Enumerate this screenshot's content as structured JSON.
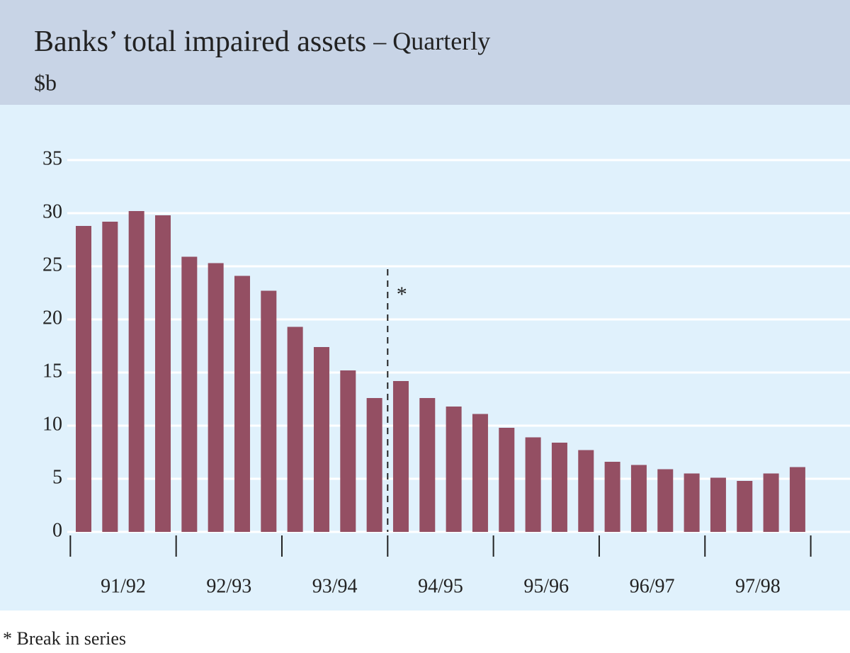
{
  "chart_data": {
    "type": "bar",
    "title": "Banks’ total impaired assets",
    "subtitle": "– Quarterly",
    "y_label": "$b",
    "year_labels": [
      "91/92",
      "92/93",
      "93/94",
      "94/95",
      "95/96",
      "96/97",
      "97/98"
    ],
    "values": [
      28.8,
      29.2,
      30.2,
      29.8,
      25.9,
      25.3,
      24.1,
      22.7,
      19.3,
      17.4,
      15.2,
      12.6,
      14.2,
      12.6,
      11.8,
      11.1,
      9.8,
      8.9,
      8.4,
      7.7,
      6.6,
      6.3,
      5.9,
      5.5,
      5.1,
      4.8,
      5.5,
      6.1
    ],
    "color": "#944f63",
    "ylim": [
      0,
      35
    ],
    "yticks": [
      0,
      5,
      10,
      15,
      20,
      25,
      30,
      35
    ],
    "grid": true,
    "break": {
      "label": "*",
      "index": 12
    },
    "footnote": "*  Break in series"
  }
}
